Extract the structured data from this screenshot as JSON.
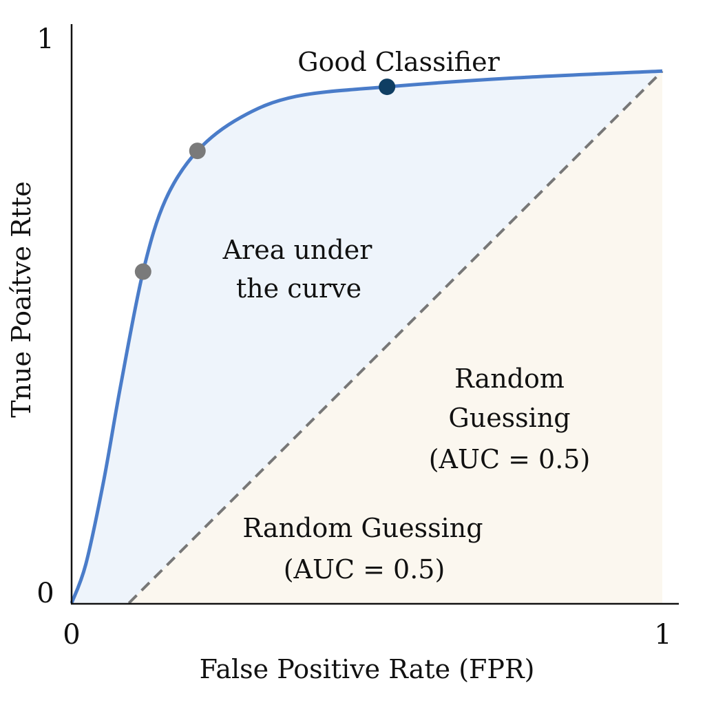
{
  "chart_data": {
    "type": "line",
    "title": "",
    "xlabel": "False Positive Rate (FPR)",
    "ylabel": "Tnue Poaítve Rtte",
    "xlim": [
      0,
      1
    ],
    "ylim": [
      0,
      1
    ],
    "x_ticks": [
      "0",
      "1"
    ],
    "y_ticks": [
      "0",
      "1"
    ],
    "grid": false,
    "series": [
      {
        "name": "Good Classifier",
        "style": "solid",
        "color": "#4a7cc9",
        "x": [
          0,
          0.024,
          0.054,
          0.083,
          0.121,
          0.159,
          0.213,
          0.287,
          0.38,
          0.534,
          0.753,
          1.0
        ],
        "y": [
          0,
          0.069,
          0.216,
          0.387,
          0.59,
          0.718,
          0.805,
          0.865,
          0.902,
          0.919,
          0.935,
          0.947
        ]
      },
      {
        "style": "dashed",
        "color": "#777777",
        "x": [
          0.097,
          1.0
        ],
        "y": [
          0,
          0.947
        ]
      }
    ],
    "highlight_points": [
      {
        "x": 0.121,
        "y": 0.59,
        "color": "#7a7a7a"
      },
      {
        "x": 0.213,
        "y": 0.805,
        "color": "#7a7a7a"
      },
      {
        "x": 0.534,
        "y": 0.919,
        "color": "#0f3e63"
      }
    ],
    "fills": {
      "area_under_curve": "#eef4fb",
      "random_region": "#fbf7ef"
    },
    "annotations": {
      "good_classifier": "Good Classifier",
      "auc_line1": "Area under",
      "auc_line2": "the curve",
      "random_right_line1": "Random",
      "random_right_line2": "Guessing",
      "random_right_line3": "(AUC = 0.5)",
      "random_bottom_line1": "Random Guessing",
      "random_bottom_line2": "(AUC = 0.5)"
    }
  }
}
